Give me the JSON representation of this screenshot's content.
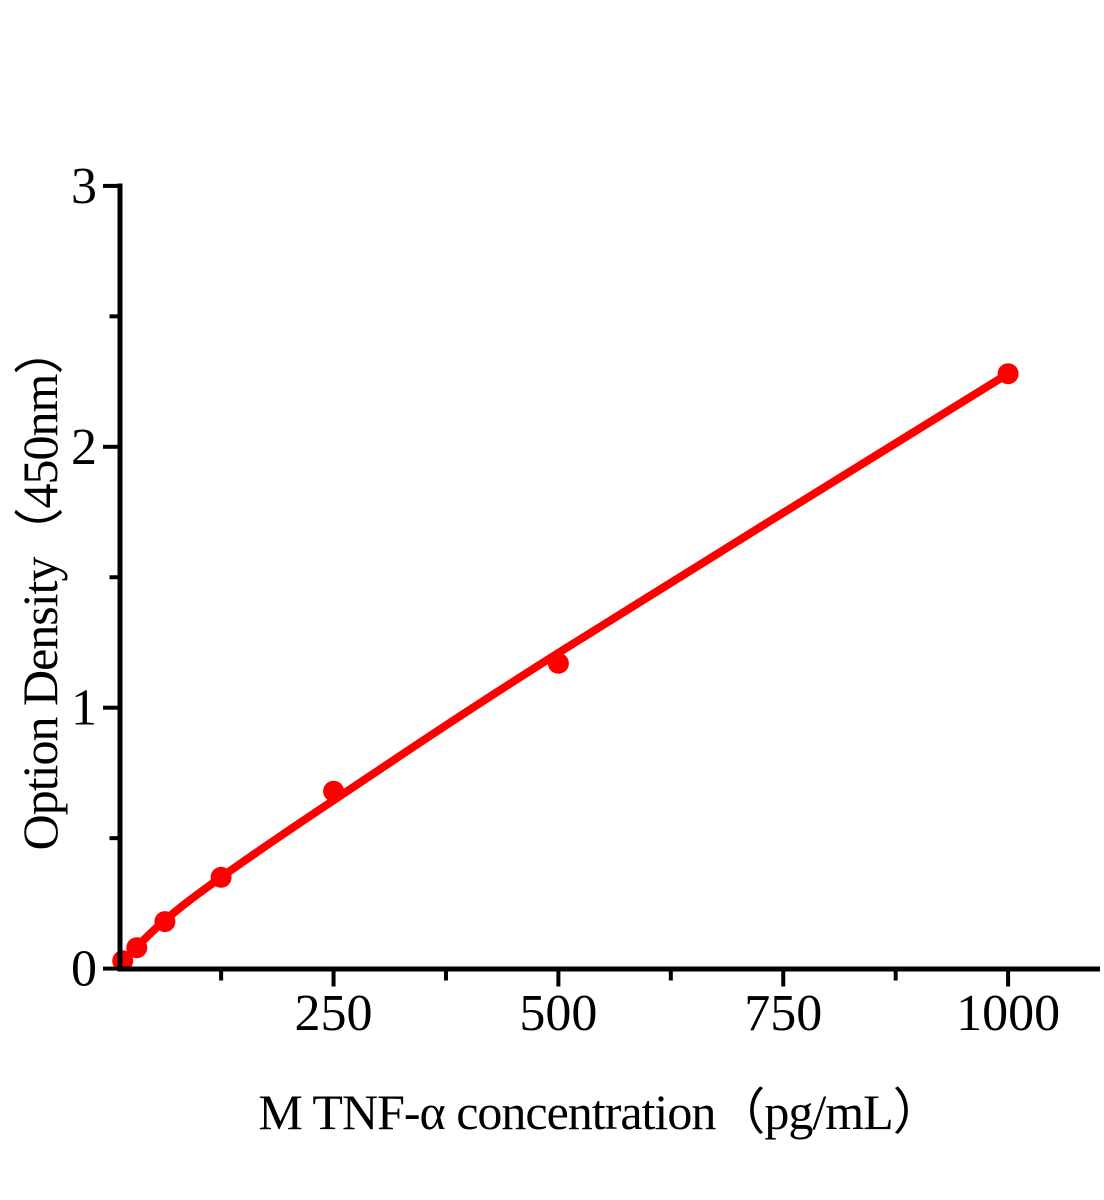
{
  "chart_data": {
    "type": "scatter",
    "title": "",
    "xlabel": "M TNF-α concentration（pg/mL）",
    "ylabel": "Option Density（450nm）",
    "x_ticks_major": [
      250,
      500,
      750,
      1000
    ],
    "x_ticks_minor": [
      125,
      375,
      625,
      875
    ],
    "y_ticks_major": [
      0,
      1,
      2,
      3
    ],
    "y_ticks_minor": [
      0.5,
      1.5,
      2.5
    ],
    "xlim": [
      0,
      1100
    ],
    "ylim": [
      0,
      3
    ],
    "grid": false,
    "legend": "none",
    "tick_direction": "out",
    "axis_color": "#000000",
    "background_color": "#ffffff",
    "marker_color": "#ff0000",
    "line_color": "#ff0000",
    "series": [
      {
        "points": [
          {
            "x": 15.6,
            "y": 0.03
          },
          {
            "x": 31.2,
            "y": 0.08
          },
          {
            "x": 62.5,
            "y": 0.18
          },
          {
            "x": 125,
            "y": 0.35
          },
          {
            "x": 250,
            "y": 0.68
          },
          {
            "x": 500,
            "y": 1.17
          },
          {
            "x": 1000,
            "y": 2.28
          }
        ],
        "fit_line_samples": [
          {
            "x": 15.6,
            "y": 0.03
          },
          {
            "x": 62.5,
            "y": 0.185
          },
          {
            "x": 125,
            "y": 0.35
          },
          {
            "x": 250,
            "y": 0.645
          },
          {
            "x": 500,
            "y": 1.21
          },
          {
            "x": 1000,
            "y": 2.28
          }
        ]
      }
    ]
  }
}
